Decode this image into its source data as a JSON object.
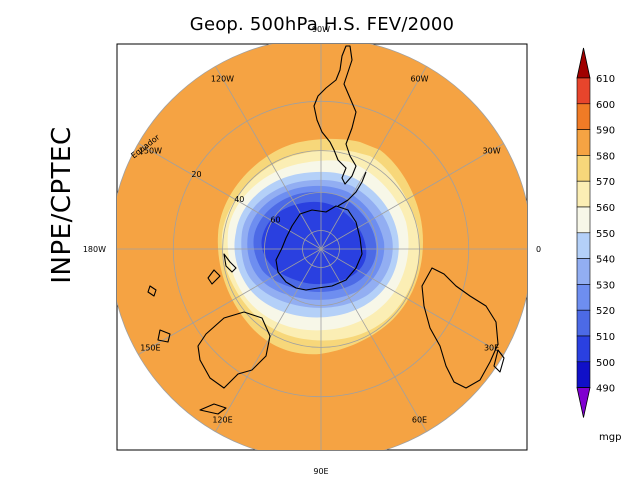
{
  "title": "Geop. 500hPa H.S. FEV/2000",
  "side_label": "INPE/CPTEC",
  "map": {
    "longitude_labels": [
      {
        "text": "90W",
        "bearing": 0
      },
      {
        "text": "60W",
        "bearing": 30
      },
      {
        "text": "30W",
        "bearing": 60
      },
      {
        "text": "0",
        "bearing": 90
      },
      {
        "text": "30E",
        "bearing": 120
      },
      {
        "text": "60E",
        "bearing": 150
      },
      {
        "text": "90E",
        "bearing": 180
      },
      {
        "text": "120E",
        "bearing": 210
      },
      {
        "text": "150E",
        "bearing": 240
      },
      {
        "text": "180W",
        "bearing": 270
      },
      {
        "text": "150W",
        "bearing": 300
      },
      {
        "text": "120W",
        "bearing": 330
      }
    ],
    "latitude_labels": [
      "Equador",
      "20",
      "40",
      "60"
    ],
    "latitude_circles": [
      0,
      20,
      40,
      60,
      80
    ]
  },
  "chart_data": {
    "type": "heatmap",
    "title": "Geop. 500hPa H.S. FEV/2000",
    "variable": "500 hPa geopotential height",
    "units": "mgp",
    "levels": [
      490,
      500,
      510,
      520,
      530,
      540,
      550,
      560,
      570,
      580,
      590,
      600,
      610
    ],
    "colors": [
      "#1010c8",
      "#2a40e0",
      "#4c6ae6",
      "#6e8ef0",
      "#92aef2",
      "#b4d0f8",
      "#f7f7e8",
      "#fbeeb4",
      "#f7d77a",
      "#f5a343",
      "#f07b26",
      "#e7452c",
      "#d81a16"
    ],
    "below_color": "#8000d0",
    "above_color": "#a00000",
    "contour_height_levels": [
      590,
      580,
      570,
      560,
      550,
      540,
      530,
      520,
      510,
      500
    ]
  }
}
